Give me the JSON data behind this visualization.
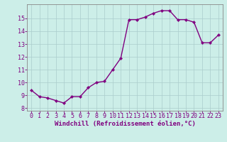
{
  "x": [
    0,
    1,
    2,
    3,
    4,
    5,
    6,
    7,
    8,
    9,
    10,
    11,
    12,
    13,
    14,
    15,
    16,
    17,
    18,
    19,
    20,
    21,
    22,
    23
  ],
  "y": [
    9.4,
    8.9,
    8.8,
    8.6,
    8.4,
    8.9,
    8.9,
    9.6,
    10.0,
    10.1,
    11.0,
    11.9,
    14.9,
    14.9,
    15.1,
    15.4,
    15.6,
    15.6,
    14.9,
    14.9,
    14.7,
    13.1,
    13.1,
    13.7
  ],
  "line_color": "#800080",
  "marker": "D",
  "marker_size": 2.2,
  "bg_color": "#cceee8",
  "grid_color": "#aacccc",
  "xlabel": "Windchill (Refroidissement éolien,°C)",
  "ylabel": "",
  "ylim_min": 7.8,
  "ylim_max": 16.1,
  "xlim_min": -0.5,
  "xlim_max": 23.5,
  "yticks": [
    8,
    9,
    10,
    11,
    12,
    13,
    14,
    15
  ],
  "xticks": [
    0,
    1,
    2,
    3,
    4,
    5,
    6,
    7,
    8,
    9,
    10,
    11,
    12,
    13,
    14,
    15,
    16,
    17,
    18,
    19,
    20,
    21,
    22,
    23
  ],
  "tick_color": "#800080",
  "label_color": "#800080",
  "label_fontsize": 6.5,
  "tick_fontsize": 6,
  "spine_color": "#888888",
  "linewidth": 1.0
}
